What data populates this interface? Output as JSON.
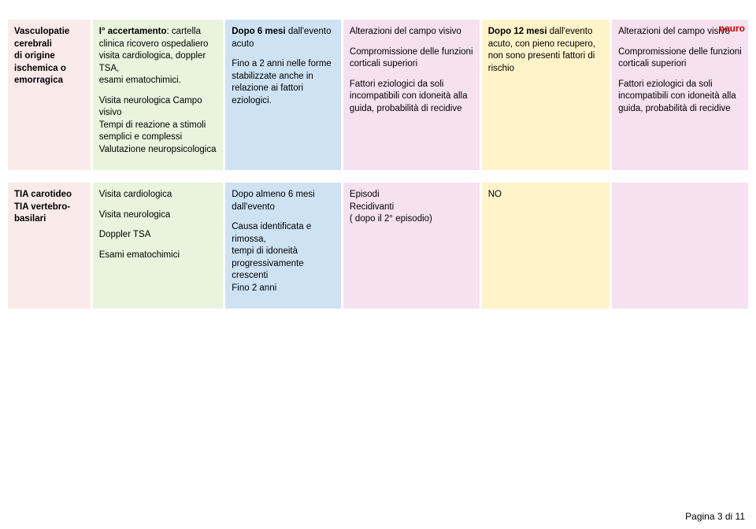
{
  "page": {
    "header": "neuro",
    "footer": "Pagina 3 di 11"
  },
  "colors": {
    "col0": "#fbeaea",
    "col1": "#e9f3dd",
    "col2": "#cde2f3",
    "col3": "#f5e1f0",
    "col4": "#fff3c9",
    "col5": "#f5e1f0"
  },
  "rows": [
    {
      "c0": {
        "bold": "Vasculopatie cerebrali\ndi origine ischemica o emorragica"
      },
      "c1": {
        "parts": [
          {
            "bold": "I° accertamento",
            "tail": ": cartella clinica ricovero ospedaliero\nvisita cardiologica, doppler TSA,\nesami ematochimici."
          },
          {
            "text": "Visita neurologica Campo visivo\nTempi di reazione a stimoli semplici e complessi\nValutazione neuropsicologica"
          }
        ]
      },
      "c2": {
        "parts": [
          {
            "bold": "Dopo 6 mesi",
            "tail": " dall'evento acuto"
          },
          {
            "text": "Fino a 2 anni nelle forme stabilizzate anche in relazione ai fattori eziologici."
          }
        ]
      },
      "c3": {
        "parts": [
          {
            "text": "Alterazioni del campo visivo"
          },
          {
            "text": "Compromissione delle funzioni corticali superiori"
          },
          {
            "text": "Fattori eziologici da soli incompatibili con idoneità alla guida, probabilità di recidive"
          }
        ]
      },
      "c4": {
        "parts": [
          {
            "bold": "Dopo 12 mesi",
            "tail": " dall'evento acuto, con pieno recupero, non sono presenti fattori di rischio"
          }
        ]
      },
      "c5": {
        "parts": [
          {
            "text": "Alterazioni del campo visivo"
          },
          {
            "text": "Compromissione delle funzioni corticali superiori"
          },
          {
            "text": "Fattori eziologici da soli incompatibili con idoneità alla guida, probabilità di recidive"
          }
        ]
      }
    },
    {
      "c0": {
        "bold": "TIA carotideo\nTIA vertebro-basilari"
      },
      "c1": {
        "parts": [
          {
            "text": "Visita cardiologica"
          },
          {
            "text": "Visita neurologica"
          },
          {
            "text": "Doppler TSA"
          },
          {
            "text": "Esami ematochimici"
          }
        ]
      },
      "c2": {
        "parts": [
          {
            "text": "Dopo almeno 6 mesi dall'evento"
          },
          {
            "text": "Causa identificata e rimossa,\ntempi di idoneità progressivamente crescenti\nFino 2 anni"
          }
        ]
      },
      "c3": {
        "parts": [
          {
            "text": "Episodi\nRecidivanti\n( dopo il 2° episodio)"
          }
        ]
      },
      "c4": {
        "parts": [
          {
            "text": "NO"
          }
        ]
      },
      "c5": {
        "parts": []
      }
    }
  ]
}
